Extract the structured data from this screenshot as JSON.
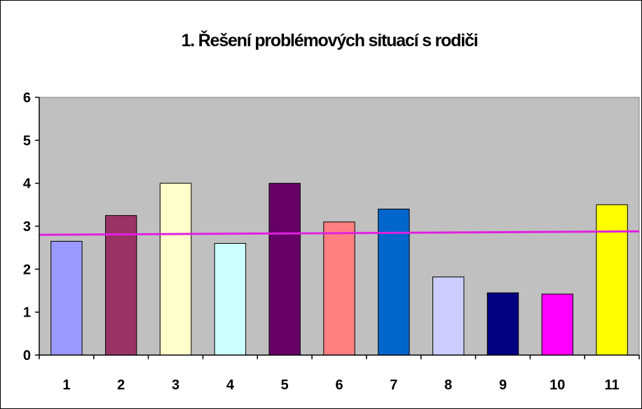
{
  "chart_data": {
    "type": "bar",
    "title": "1. Řešení problémových situací s rodiči",
    "categories": [
      "1",
      "2",
      "3",
      "4",
      "5",
      "6",
      "7",
      "8",
      "9",
      "10",
      "11"
    ],
    "values": [
      2.65,
      3.25,
      4.0,
      2.6,
      4.0,
      3.1,
      3.4,
      1.82,
      1.45,
      1.42,
      3.5
    ],
    "bar_colors": [
      "#9999FF",
      "#993366",
      "#FFFFCC",
      "#CCFFFF",
      "#660066",
      "#FF8080",
      "#0066CC",
      "#CCCCFF",
      "#000080",
      "#FF00FF",
      "#FFFF00"
    ],
    "ylim": [
      0,
      6
    ],
    "yticks": [
      "0",
      "1",
      "2",
      "3",
      "4",
      "5",
      "6"
    ],
    "trendline": {
      "start": 2.8,
      "end": 2.88,
      "color": "#E020E0"
    },
    "plot_background": "#C0C0C0",
    "grid": false,
    "legend": "none"
  }
}
